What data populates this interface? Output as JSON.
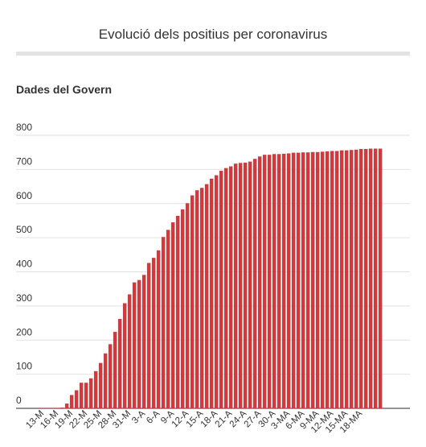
{
  "header": {
    "title": "Evolució dels positius per coronavirus",
    "subtitle": "Dades del Govern"
  },
  "chart_data": {
    "type": "bar",
    "title": "Evolució dels positius per coronavirus",
    "subtitle": "Dades del Govern",
    "xlabel": "",
    "ylabel": "",
    "ylim": [
      0,
      800
    ],
    "yticks": [
      0,
      100,
      200,
      300,
      400,
      500,
      600,
      700,
      800
    ],
    "xtick_labels": [
      "13-M",
      "16-M",
      "19-M",
      "22-M",
      "25-M",
      "28-M",
      "31-M",
      "3-A",
      "6-A",
      "9-A",
      "12-A",
      "15-A",
      "18-A",
      "21-A",
      "24-A",
      "27-A",
      "30-A",
      "3-MA",
      "6-MA",
      "9-MA",
      "12-MA",
      "15-MA",
      "18-MA"
    ],
    "grid": true,
    "bar_color": "#d9353b",
    "series": [
      {
        "values": [
          1,
          1,
          1,
          1,
          2,
          14,
          39,
          53,
          75,
          75,
          88,
          109,
          133,
          161,
          188,
          224,
          262,
          308,
          334,
          369,
          376,
          391,
          426,
          441,
          463,
          502,
          523,
          545,
          564,
          583,
          601,
          624,
          639,
          646,
          657,
          673,
          683,
          696,
          704,
          709,
          717,
          719,
          720,
          723,
          731,
          738,
          743,
          743,
          745,
          745,
          746,
          747,
          749,
          749,
          750,
          750,
          751,
          751,
          752,
          753,
          754,
          754,
          756,
          756,
          757,
          758,
          760,
          760,
          761,
          761,
          761
        ]
      }
    ]
  }
}
